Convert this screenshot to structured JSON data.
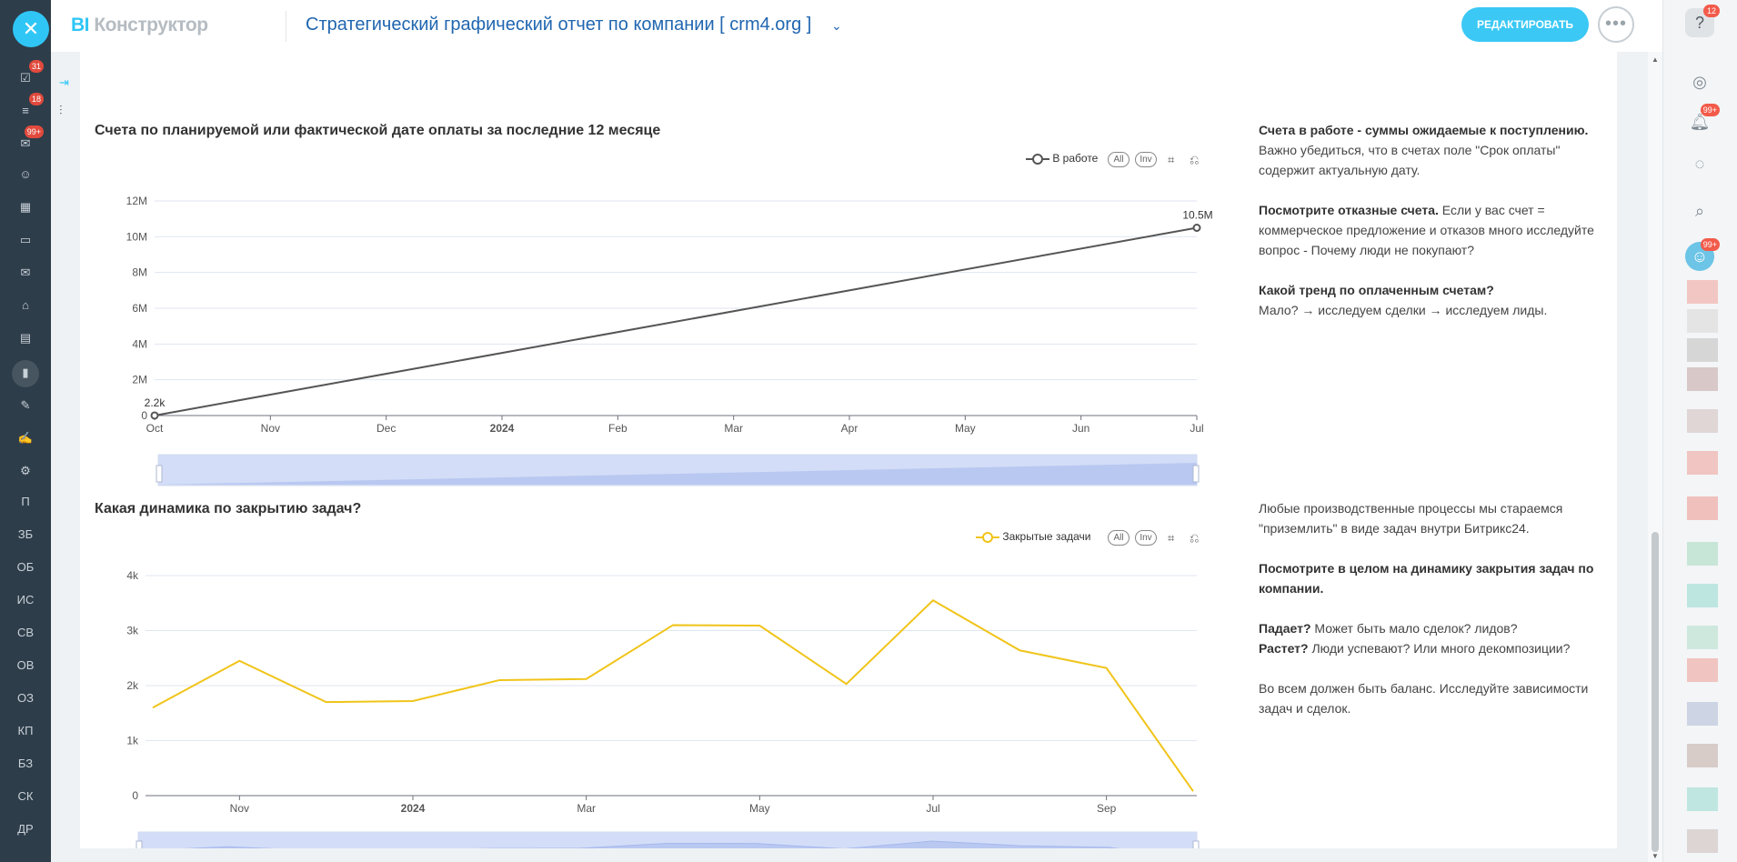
{
  "header": {
    "brand_bi": "BI",
    "brand_name": "Конструктор",
    "report_title": "Стратегический графический отчет по компании [ crm4.org ]",
    "edit_label": "РЕДАКТИРОВАТЬ"
  },
  "left_sidebar": {
    "badges": [
      "31",
      "18",
      "99+"
    ],
    "letters": [
      "П",
      "ЗБ",
      "ОБ",
      "ИС",
      "СВ",
      "ОВ",
      "ОЗ",
      "КП",
      "БЗ",
      "СК",
      "ДР"
    ]
  },
  "right_sidebar": {
    "help_badge": "12",
    "bell_badge": "99+",
    "avatar_badge": "99+"
  },
  "chart1": {
    "title": "Счета по планируемой или фактической дате оплаты за последние 12 месяце",
    "legend": "В работе",
    "all_btn": "All",
    "inv_btn": "Inv",
    "notes": [
      {
        "bold": "Счета в работе - суммы ожидаемые к поступлению.",
        "text": "Важно убедиться, что в счетах поле \"Срок оплаты\" содержит актуальную дату."
      },
      {
        "bold": "Посмотрите отказные счета.",
        "text": "Если у вас счет = коммерческое предложение и отказов много исследуйте вопрос - Почему люди не покупают?"
      },
      {
        "bold": "Какой тренд по оплаченным счетам?",
        "text": "Мало? → исследуем сделки → исследуем лиды."
      }
    ]
  },
  "chart2": {
    "title": "Какая динамика по закрытию задач?",
    "legend": "Закрытые задачи",
    "all_btn": "All",
    "inv_btn": "Inv",
    "notes": [
      {
        "bold": "",
        "text": "Любые производственные процессы мы стараемся \"приземлить\" в виде задач внутри Битрикс24."
      },
      {
        "bold": "Посмотрите в целом на динамику закрытия задач по компании.",
        "text": ""
      },
      {
        "bold": "Падает?",
        "text": "Может быть мало сделок? лидов?",
        "bold2": "Растет?",
        "text2": "Люди успевают? Или много декомпозиции?"
      },
      {
        "bold": "",
        "text": "Во всем должен быть баланс. Исследуйте зависимости задач и сделок."
      }
    ]
  },
  "chart_data": [
    {
      "type": "line",
      "title": "Счета по планируемой или фактической дате оплаты за последние 12 месяце",
      "x_ticks": [
        "Oct",
        "Nov",
        "Dec",
        "2024",
        "Feb",
        "Mar",
        "Apr",
        "May",
        "Jun",
        "Jul"
      ],
      "y_ticks": [
        "0",
        "2M",
        "4M",
        "6M",
        "8M",
        "10M",
        "12M"
      ],
      "ylim": [
        0,
        12000000
      ],
      "series": [
        {
          "name": "В работе",
          "color": "#555555",
          "points": [
            {
              "x": "Oct",
              "y": 2200,
              "label": "2.2k"
            },
            {
              "x": "Jul",
              "y": 10500000,
              "label": "10.5M"
            }
          ]
        }
      ],
      "legend_position": "top-right",
      "grid": true
    },
    {
      "type": "line",
      "title": "Какая динамика по закрытию задач?",
      "x_ticks": [
        "Nov",
        "2024",
        "Mar",
        "May",
        "Jul",
        "Sep"
      ],
      "y_ticks": [
        "0",
        "1k",
        "2k",
        "3k",
        "4k"
      ],
      "ylim": [
        0,
        4000
      ],
      "categories": [
        "2023-10",
        "2023-11",
        "2023-12",
        "2024-01",
        "2024-02",
        "2024-03",
        "2024-04",
        "2024-05",
        "2024-06",
        "2024-07",
        "2024-08",
        "2024-09",
        "2024-10"
      ],
      "series": [
        {
          "name": "Закрытые задачи",
          "color": "#f0c419",
          "values": [
            1600,
            2450,
            1700,
            1720,
            2100,
            2120,
            3100,
            3090,
            2030,
            3550,
            2640,
            2320,
            80
          ]
        }
      ],
      "legend_position": "top-right",
      "grid": true
    }
  ]
}
